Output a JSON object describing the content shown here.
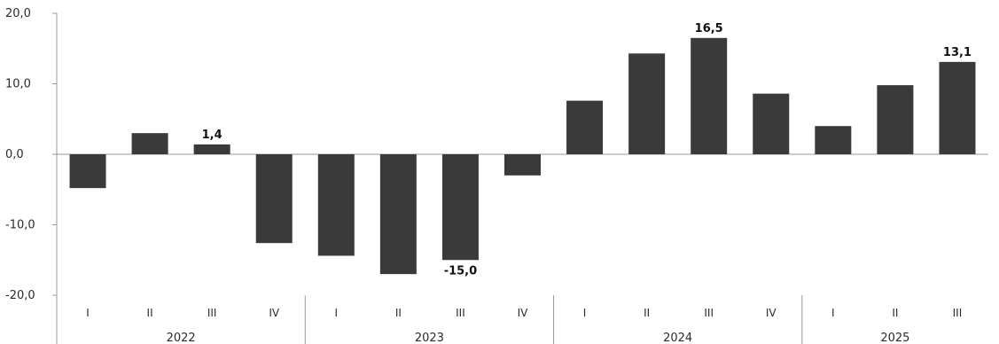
{
  "chart_data": {
    "type": "bar",
    "title": "",
    "xlabel": "",
    "ylabel": "",
    "ylim": [
      -20,
      20
    ],
    "yticks": [
      "20,0",
      "10,0",
      "0,0",
      "-10,0",
      "-20,0"
    ],
    "ytick_values": [
      20,
      10,
      0,
      -10,
      -20
    ],
    "grid": false,
    "bar_color": "#3a3a3a",
    "categories": [
      "I",
      "II",
      "III",
      "IV",
      "I",
      "II",
      "III",
      "IV",
      "I",
      "II",
      "III",
      "IV",
      "I",
      "II",
      "III"
    ],
    "groups": [
      {
        "label": "2022",
        "count": 4
      },
      {
        "label": "2023",
        "count": 4
      },
      {
        "label": "2024",
        "count": 4
      },
      {
        "label": "2025",
        "count": 3
      }
    ],
    "values": [
      -4.8,
      3.0,
      1.4,
      -12.6,
      -14.4,
      -17.0,
      -15.0,
      -3.0,
      7.6,
      14.3,
      16.5,
      8.6,
      4.0,
      9.8,
      13.1
    ],
    "data_labels": [
      {
        "index": 2,
        "text": "1,4"
      },
      {
        "index": 6,
        "text": "-15,0"
      },
      {
        "index": 10,
        "text": "16,5"
      },
      {
        "index": 14,
        "text": "13,1"
      }
    ]
  }
}
